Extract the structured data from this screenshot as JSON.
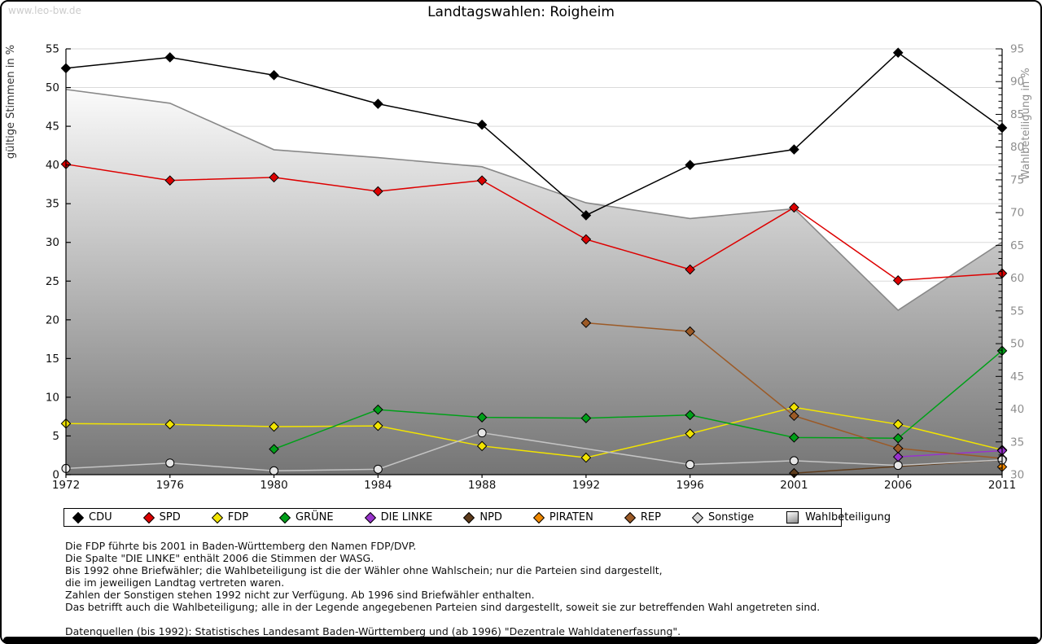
{
  "page": {
    "watermark": "www.leo-bw.de",
    "title": "Landtagswahlen: Roigheim"
  },
  "chart_data": {
    "type": "line",
    "title": "Landtagswahlen: Roigheim",
    "categories": [
      "1972",
      "1976",
      "1980",
      "1984",
      "1988",
      "1992",
      "1996",
      "2001",
      "2006",
      "2011"
    ],
    "axes": {
      "left": {
        "label": "gültige Stimmen in %",
        "min": 0,
        "max": 55,
        "tick": 5
      },
      "right": {
        "label": "Wahlbeteiligung in %",
        "min": 30,
        "max": 95,
        "tick": 5,
        "minor_tick": 1
      }
    },
    "grid": "horizontal",
    "legend_position": "bottom",
    "area_series": {
      "name": "Wahlbeteiligung",
      "axis": "right",
      "values": [
        88.8,
        86.7,
        79.6,
        78.4,
        77.0,
        71.5,
        69.1,
        70.6,
        55.1,
        65.5
      ],
      "line_color": "#888888",
      "fill_top": "#fcfcfc",
      "fill_bottom": "#757575"
    },
    "series": [
      {
        "name": "CDU",
        "color": "#000000",
        "marker": "diamond",
        "values": [
          52.5,
          53.9,
          51.6,
          47.9,
          45.2,
          33.5,
          40.0,
          42.0,
          54.5,
          44.8
        ]
      },
      {
        "name": "SPD",
        "color": "#dd0000",
        "marker": "diamond",
        "values": [
          40.1,
          38.0,
          38.4,
          36.6,
          38.0,
          30.4,
          26.5,
          34.5,
          25.1,
          26.0
        ]
      },
      {
        "name": "FDP",
        "color": "#f2e400",
        "marker": "diamond",
        "values": [
          6.6,
          6.5,
          6.2,
          6.3,
          3.7,
          2.2,
          5.3,
          8.7,
          6.5,
          3.2
        ]
      },
      {
        "name": "GRÜNE",
        "color": "#00a019",
        "marker": "diamond",
        "values": [
          null,
          null,
          3.3,
          8.4,
          7.4,
          7.3,
          7.7,
          4.8,
          4.7,
          16.0
        ]
      },
      {
        "name": "DIE LINKE",
        "color": "#9933cc",
        "marker": "diamond",
        "values": [
          null,
          null,
          null,
          null,
          null,
          null,
          null,
          null,
          2.3,
          3.1
        ]
      },
      {
        "name": "NPD",
        "color": "#5e3c1c",
        "marker": "diamond",
        "values": [
          null,
          null,
          null,
          null,
          null,
          null,
          null,
          0.2,
          null,
          1.9
        ]
      },
      {
        "name": "PIRATEN",
        "color": "#ef8800",
        "marker": "diamond",
        "values": [
          null,
          null,
          null,
          null,
          null,
          null,
          null,
          null,
          null,
          1.0
        ]
      },
      {
        "name": "REP",
        "color": "#9c5a26",
        "marker": "diamond",
        "values": [
          null,
          null,
          null,
          null,
          null,
          19.6,
          18.5,
          7.6,
          3.4,
          2.1
        ]
      },
      {
        "name": "Sonstige",
        "color": "#c4c4c4",
        "marker": "circle",
        "marker_fill": "#e6e6e6",
        "values": [
          0.8,
          1.5,
          0.5,
          0.7,
          5.4,
          null,
          1.3,
          1.8,
          1.2,
          1.9
        ]
      }
    ]
  },
  "legend": {
    "items": [
      {
        "label": "CDU",
        "swatch": "diamond",
        "color": "#000000"
      },
      {
        "label": "SPD",
        "swatch": "diamond",
        "color": "#dd0000"
      },
      {
        "label": "FDP",
        "swatch": "diamond",
        "color": "#f2e400"
      },
      {
        "label": "GRÜNE",
        "swatch": "diamond",
        "color": "#00a019"
      },
      {
        "label": "DIE LINKE",
        "swatch": "diamond",
        "color": "#9933cc"
      },
      {
        "label": "NPD",
        "swatch": "diamond",
        "color": "#5e3c1c"
      },
      {
        "label": "PIRATEN",
        "swatch": "diamond",
        "color": "#ef8800"
      },
      {
        "label": "REP",
        "swatch": "diamond",
        "color": "#9c5a26"
      },
      {
        "label": "Sonstige",
        "swatch": "diamond",
        "color": "#d8d8d8"
      },
      {
        "label": "Wahlbeteiligung",
        "swatch": "gradient-square",
        "color": "#8d8d8d"
      }
    ]
  },
  "footnotes": {
    "lines": [
      "Die FDP führte bis 2001 in Baden-Württemberg den Namen FDP/DVP.",
      "Die Spalte \"DIE LINKE\" enthält 2006 die Stimmen der WASG.",
      "Bis 1992 ohne Briefwähler; die Wahlbeteiligung ist die der Wähler ohne Wahlschein; nur die Parteien sind dargestellt,",
      "die im jeweiligen Landtag vertreten waren.",
      "Zahlen der Sonstigen stehen 1992 nicht zur Verfügung. Ab 1996 sind Briefwähler enthalten.",
      "Das betrifft auch die Wahlbeteiligung; alle in der Legende angegebenen Parteien sind dargestellt, soweit sie zur betreffenden Wahl angetreten sind."
    ],
    "source": "Datenquellen (bis 1992): Statistisches Landesamt Baden-Württemberg und (ab 1996) \"Dezentrale Wahldatenerfassung\"."
  }
}
